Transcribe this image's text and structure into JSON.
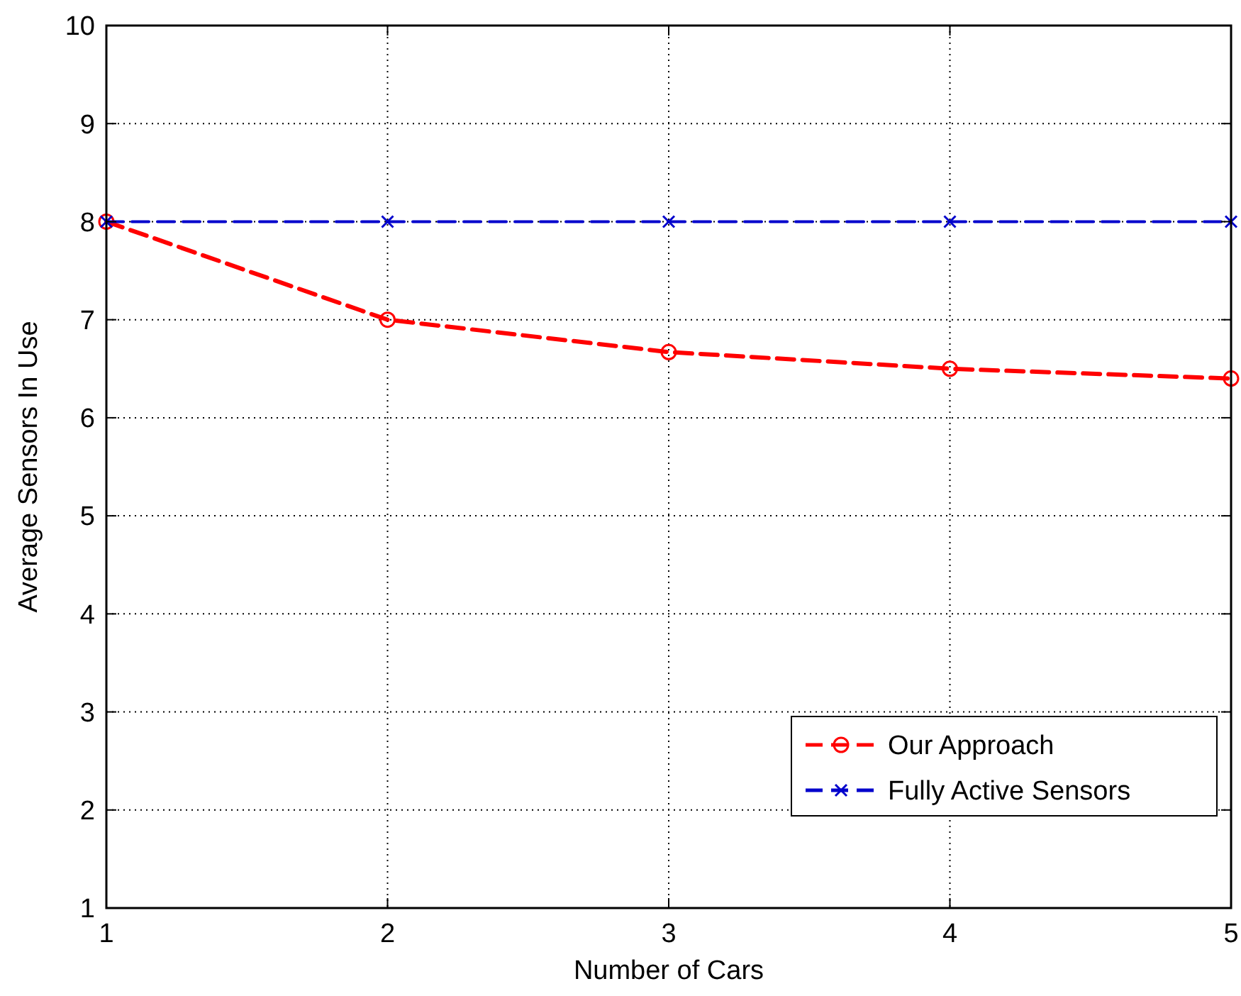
{
  "chart_data": {
    "type": "line",
    "xlabel": "Number of Cars",
    "ylabel": "Average Sensors In Use",
    "x": [
      1,
      2,
      3,
      4,
      5
    ],
    "series": [
      {
        "name": "Our Approach",
        "color": "#ff0000",
        "values": [
          8,
          7,
          6.67,
          6.5,
          6.4
        ],
        "marker": "circle",
        "line_style": "dashed"
      },
      {
        "name": "Fully Active Sensors",
        "color": "#0000cc",
        "values": [
          8,
          8,
          8,
          8,
          8
        ],
        "marker": "cross",
        "line_style": "dashed"
      }
    ],
    "xlim": [
      1,
      5
    ],
    "xticks": [
      1,
      2,
      3,
      4,
      5
    ],
    "ylim": [
      1,
      10
    ],
    "yticks": [
      1,
      2,
      3,
      4,
      5,
      6,
      7,
      8,
      9,
      10
    ],
    "grid": true,
    "legend": "bottom right"
  }
}
